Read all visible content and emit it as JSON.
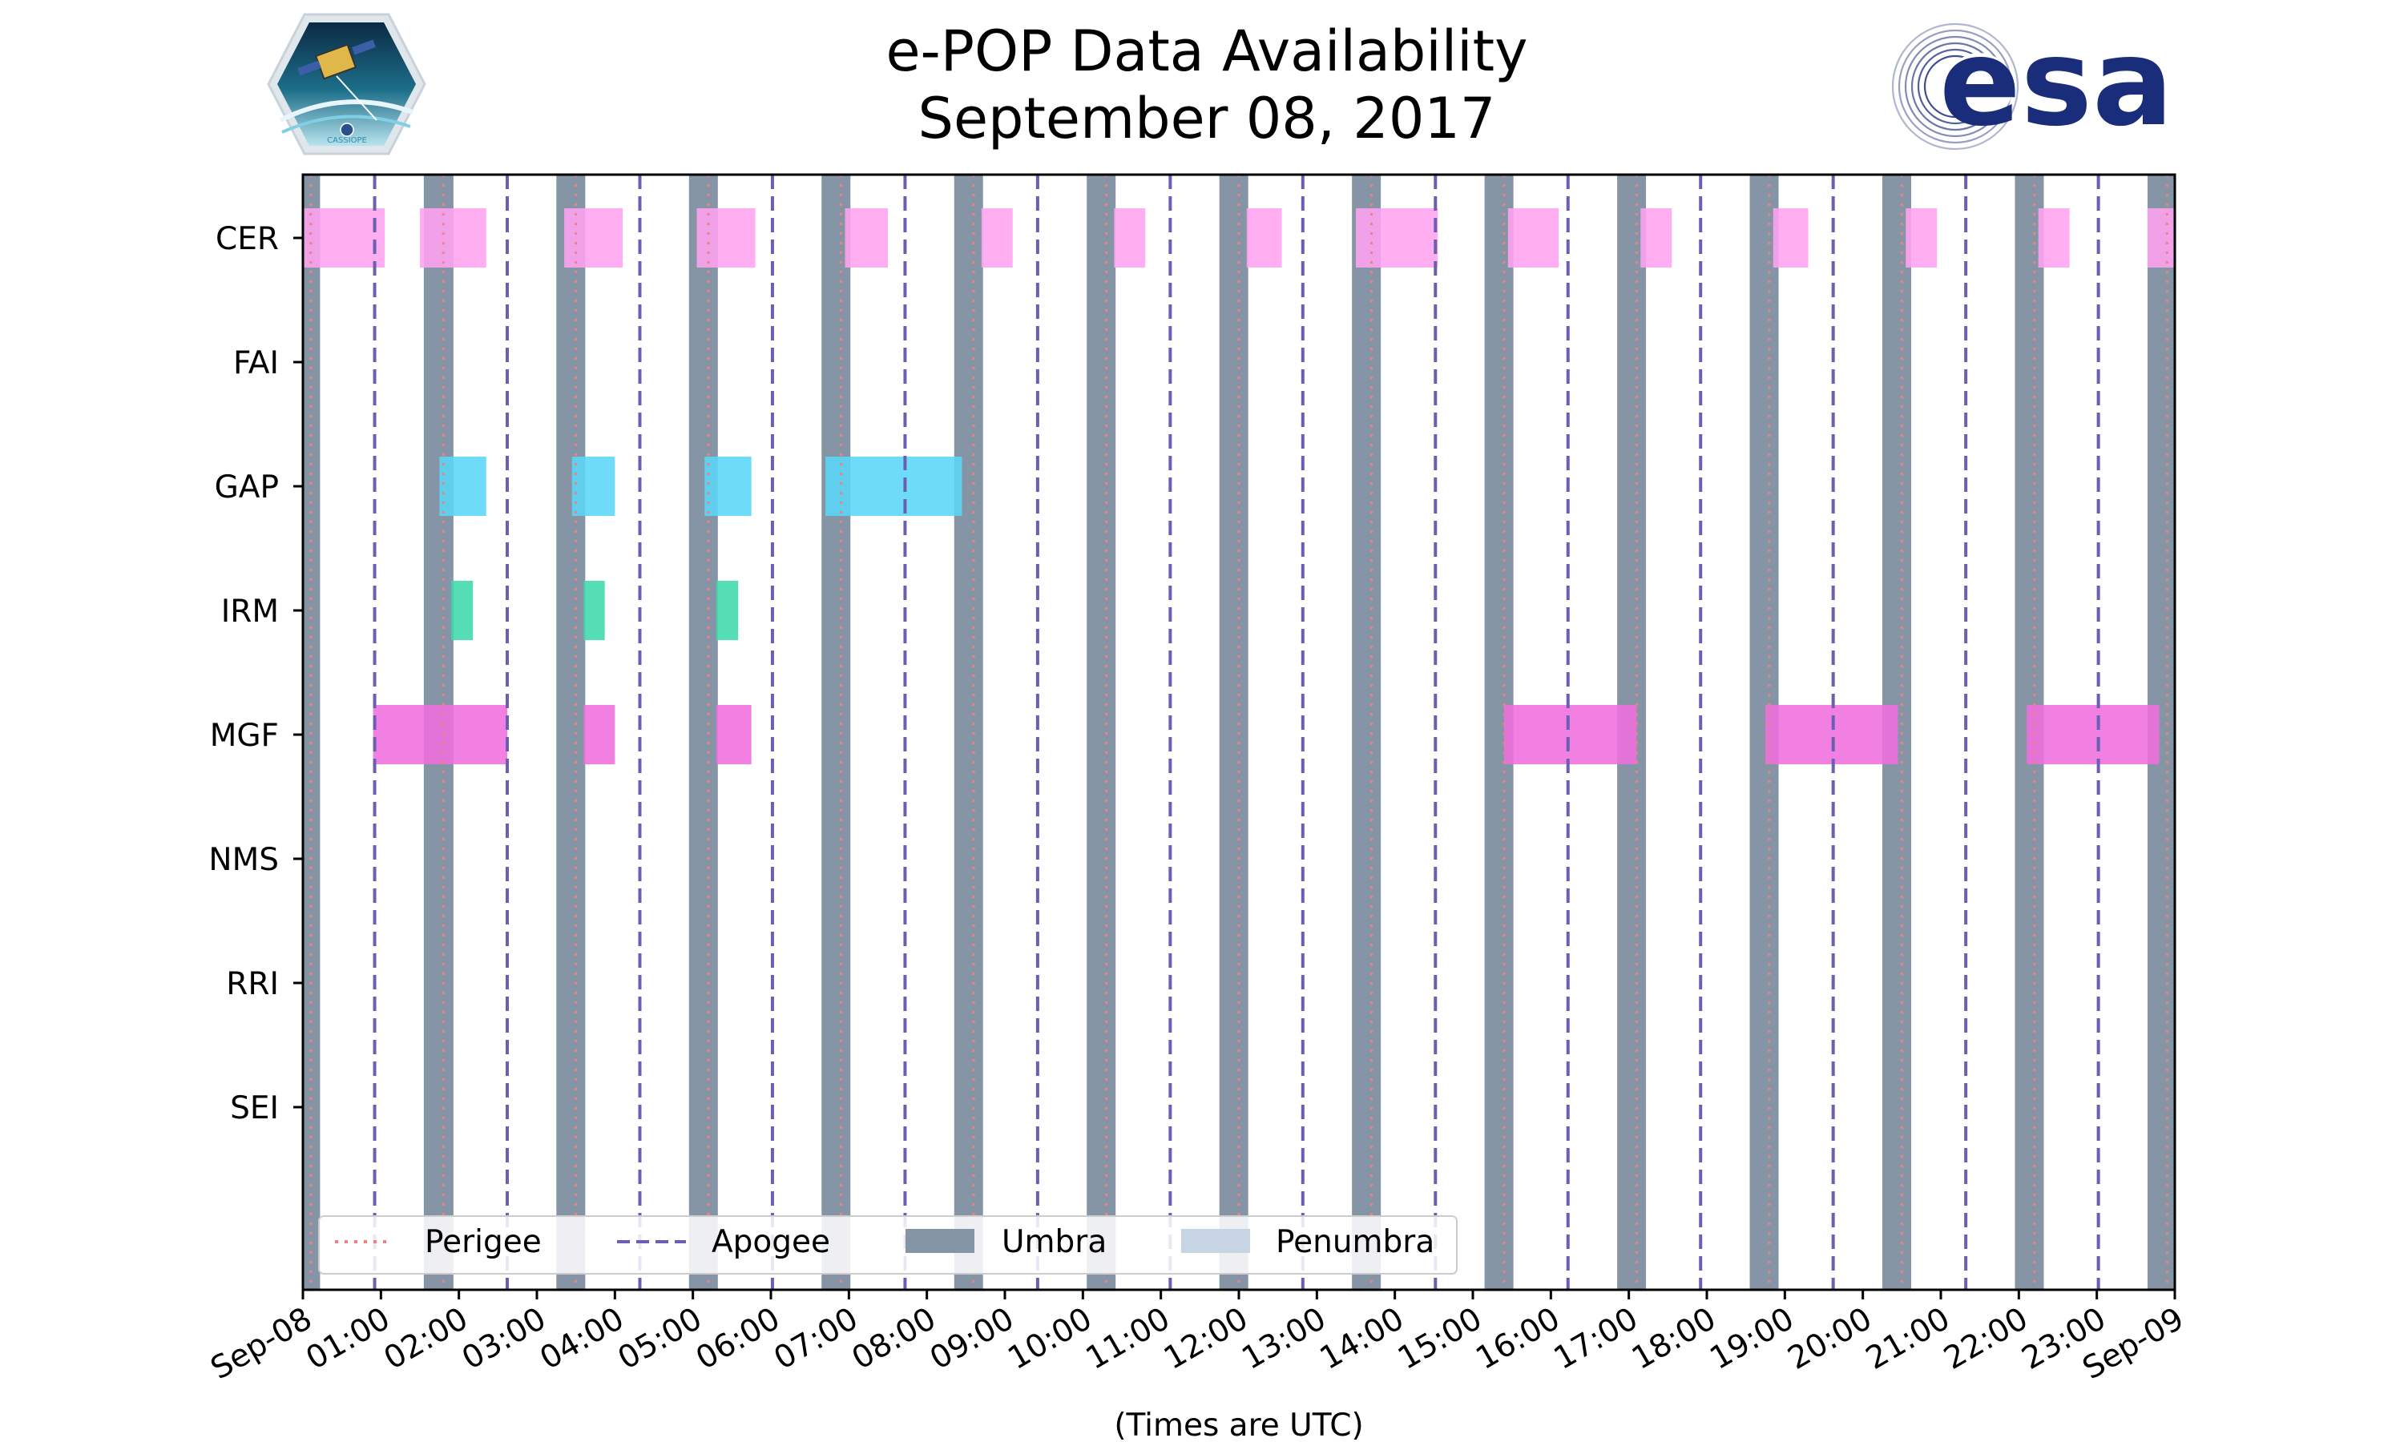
{
  "colors": {
    "perigee": "#f28080",
    "apogee": "#6a5fb3",
    "umbra": "#8595a5",
    "penumbra": "#c6d4e4",
    "esa_blue": "#1a2d7a"
  },
  "logos": {
    "left_caption": "CASSIOPE",
    "right_text": "esa"
  },
  "chart_data": {
    "type": "timeline",
    "title": [
      "e-POP Data Availability",
      "September 08, 2017"
    ],
    "xlabel": "(Times are UTC)",
    "xlim_hours": [
      0,
      24
    ],
    "x_tick_labels": [
      "Sep-08",
      "01:00",
      "02:00",
      "03:00",
      "04:00",
      "05:00",
      "06:00",
      "07:00",
      "08:00",
      "09:00",
      "10:00",
      "11:00",
      "12:00",
      "13:00",
      "14:00",
      "15:00",
      "16:00",
      "17:00",
      "18:00",
      "19:00",
      "20:00",
      "21:00",
      "22:00",
      "23:00",
      "Sep-09"
    ],
    "instruments": [
      "CER",
      "FAI",
      "GAP",
      "IRM",
      "MGF",
      "NMS",
      "RRI",
      "SEI"
    ],
    "umbra_hours": [
      [
        0,
        0.22
      ],
      [
        1.55,
        1.93
      ],
      [
        3.25,
        3.62
      ],
      [
        4.95,
        5.32
      ],
      [
        6.65,
        7.02
      ],
      [
        8.35,
        8.72
      ],
      [
        10.05,
        10.42
      ],
      [
        11.75,
        12.12
      ],
      [
        13.45,
        13.82
      ],
      [
        15.15,
        15.52
      ],
      [
        16.85,
        17.22
      ],
      [
        18.55,
        18.92
      ],
      [
        20.25,
        20.62
      ],
      [
        21.95,
        22.32
      ],
      [
        23.65,
        24.0
      ]
    ],
    "perigee_hours": [
      0.1,
      1.8,
      3.5,
      5.2,
      6.9,
      8.6,
      10.3,
      12.0,
      13.7,
      15.4,
      17.1,
      18.8,
      20.5,
      22.2,
      23.9
    ],
    "apogee_hours": [
      0.92,
      2.62,
      4.32,
      6.02,
      7.72,
      9.42,
      11.12,
      12.82,
      14.52,
      16.22,
      17.92,
      19.62,
      21.32,
      23.02
    ],
    "availability": {
      "CER": [
        [
          0.0,
          1.05
        ],
        [
          1.5,
          2.35
        ],
        [
          3.35,
          4.1
        ],
        [
          5.05,
          5.8
        ],
        [
          6.95,
          7.5
        ],
        [
          8.7,
          9.1
        ],
        [
          10.4,
          10.8
        ],
        [
          12.1,
          12.55
        ],
        [
          13.5,
          14.55
        ],
        [
          15.45,
          16.1
        ],
        [
          17.15,
          17.55
        ],
        [
          18.85,
          19.3
        ],
        [
          20.55,
          20.95
        ],
        [
          22.25,
          22.65
        ],
        [
          23.65,
          24.0
        ]
      ],
      "FAI": [],
      "GAP": [
        [
          1.75,
          2.35
        ],
        [
          3.45,
          4.0
        ],
        [
          5.15,
          5.75
        ],
        [
          6.7,
          8.45
        ]
      ],
      "IRM": [
        [
          1.9,
          2.18
        ],
        [
          3.6,
          3.87
        ],
        [
          5.3,
          5.58
        ]
      ],
      "MGF": [
        [
          0.9,
          2.62
        ],
        [
          3.6,
          4.0
        ],
        [
          5.3,
          5.75
        ],
        [
          15.4,
          17.1
        ],
        [
          18.75,
          20.45
        ],
        [
          22.1,
          23.8
        ]
      ],
      "NMS": [],
      "RRI": [],
      "SEI": []
    },
    "instrument_colors": {
      "CER": "#ffa3f0",
      "FAI": "#cccccc",
      "GAP": "#5ad7f7",
      "IRM": "#3dd8ab",
      "MGF": "#f06ede",
      "NMS": "#cccccc",
      "RRI": "#cccccc",
      "SEI": "#cccccc"
    },
    "legend": {
      "position": "lower-left",
      "entries": [
        "Perigee",
        "Apogee",
        "Umbra",
        "Penumbra"
      ]
    }
  }
}
